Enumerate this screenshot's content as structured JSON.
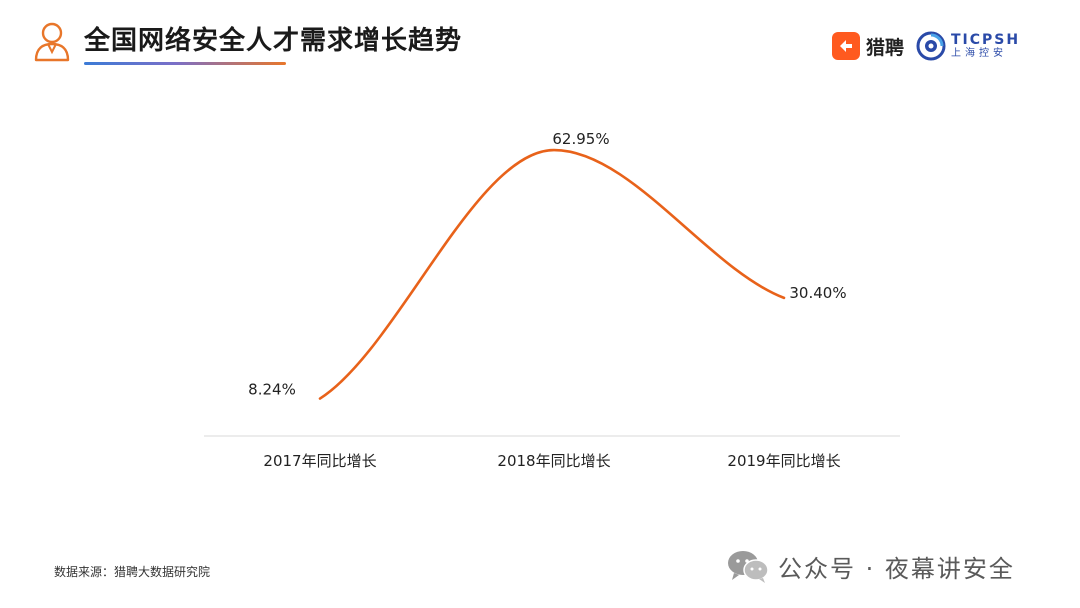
{
  "header": {
    "title": "全国网络安全人才需求增长趋势",
    "brand_liepin_name": "猎聘",
    "brand_ticpsh_en": "TICPSH",
    "brand_ticpsh_cn": "上海控安",
    "icons": [
      "person-icon",
      "liepin-logo-icon",
      "ticpsh-logo-icon"
    ],
    "colors": {
      "accent": "#e8762a",
      "underline_start": "#3b7bd6",
      "liepin": "#ff5a1f",
      "ticpsh": "#2a4aa8"
    }
  },
  "chart_data": {
    "type": "line",
    "title": "全国网络安全人才需求增长趋势",
    "xlabel": "",
    "ylabel": "",
    "categories": [
      "2017年同比增长",
      "2018年同比增长",
      "2019年同比增长"
    ],
    "values": [
      8.24,
      62.95,
      30.4
    ],
    "value_labels": [
      "8.24%",
      "62.95%",
      "30.40%"
    ],
    "ylim": [
      0,
      70
    ],
    "smooth": true,
    "grid": false,
    "legend": "none",
    "line_color": "#e8621a"
  },
  "footer": {
    "source": "数据来源：猎聘大数据研究院",
    "watermark": "公众号 · 夜幕讲安全",
    "watermark_icon": "wechat-icon"
  }
}
